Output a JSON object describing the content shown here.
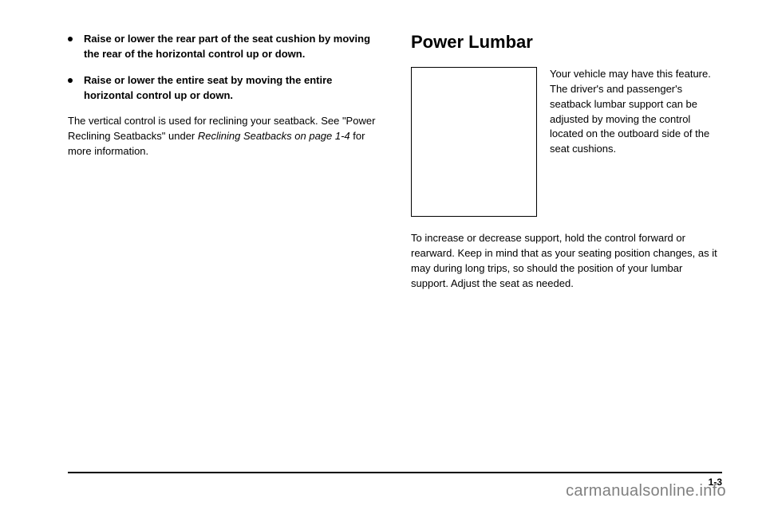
{
  "left": {
    "bullets": [
      "Raise or lower the rear part of the seat cushion by moving the rear of the horizontal control up or down.",
      "Raise or lower the entire seat by moving the entire horizontal control up or down."
    ],
    "para_plain1": "The vertical control is used for reclining your seatback. See \"Power Reclining Seatbacks\" under ",
    "para_italic": "Reclining Seatbacks on page 1-4",
    "para_plain2": " for more information."
  },
  "right": {
    "heading": "Power Lumbar",
    "figure_text": "Your vehicle may have this feature. The driver's and passenger's seatback lumbar support can be adjusted by moving the control located on the outboard side of the seat cushions.",
    "para": "To increase or decrease support, hold the control forward or rearward. Keep in mind that as your seating position changes, as it may during long trips, so should the position of your lumbar support. Adjust the seat as needed."
  },
  "watermark": "carmanualsonline.info",
  "pagenum": "1-3"
}
